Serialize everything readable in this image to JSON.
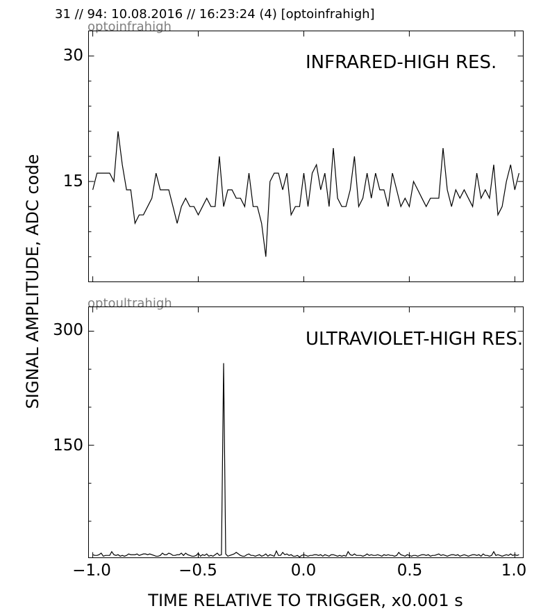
{
  "header": {
    "text": "31 // 94:   10.08.2016 // 16:23:24 (4)  [optoinfrahigh]"
  },
  "ylabel": "SIGNAL AMPLITUDE,  ADC code",
  "xlabel": "TIME RELATIVE TO TRIGGER,   x0.001 s",
  "colors": {
    "line": "#000000",
    "subtitle": "#808080",
    "axes": "#000000"
  },
  "chart_data": [
    {
      "type": "line",
      "subtitle": "optoinfrahigh",
      "panel_label": "INFRARED-HIGH RES.",
      "xlim": [
        -1.02,
        1.04
      ],
      "ylim": [
        3.0,
        33.0
      ],
      "yticks": [
        30,
        15
      ],
      "ytick_labels": [
        "30",
        "15"
      ],
      "x_start": -1.0,
      "x_step": 0.02,
      "values": [
        14,
        16,
        16,
        16,
        16,
        15,
        21,
        17,
        14,
        14,
        10,
        11,
        11,
        12,
        13,
        16,
        14,
        14,
        14,
        12,
        10,
        12,
        13,
        12,
        12,
        11,
        12,
        13,
        12,
        12,
        18,
        12,
        14,
        14,
        13,
        13,
        12,
        16,
        12,
        12,
        10,
        6,
        15,
        16,
        16,
        14,
        16,
        11,
        12,
        12,
        16,
        12,
        16,
        17,
        14,
        16,
        12,
        19,
        13,
        12,
        12,
        14,
        18,
        12,
        13,
        16,
        13,
        16,
        14,
        14,
        12,
        16,
        14,
        12,
        13,
        12,
        15,
        14,
        13,
        12,
        13,
        13,
        13,
        19,
        14,
        12,
        14,
        13,
        14,
        13,
        12,
        16,
        13,
        14,
        13,
        17,
        11,
        12,
        15,
        17,
        14,
        16
      ]
    },
    {
      "type": "line",
      "subtitle": "optoultrahigh",
      "panel_label": "ULTRAVIOLET-HIGH RES.",
      "xlim": [
        -1.02,
        1.04
      ],
      "ylim": [
        2.0,
        332.0
      ],
      "yticks": [
        300,
        150
      ],
      "ytick_labels": [
        "300",
        "150"
      ],
      "xticks": [
        -1.0,
        -0.5,
        0.0,
        0.5,
        1.0
      ],
      "xtick_labels": [
        "−1.0",
        "−0.5",
        "0.0",
        "0.5",
        "1.0"
      ],
      "x_start": -1.0,
      "x_step": 0.01,
      "values": [
        6,
        5,
        5,
        6,
        8,
        4,
        5,
        5,
        5,
        10,
        6,
        5,
        6,
        4,
        5,
        4,
        5,
        7,
        6,
        6,
        6,
        7,
        5,
        6,
        7,
        7,
        6,
        7,
        6,
        5,
        4,
        4,
        5,
        8,
        6,
        6,
        8,
        7,
        5,
        5,
        6,
        6,
        8,
        5,
        8,
        6,
        5,
        4,
        4,
        5,
        8,
        4,
        6,
        5,
        7,
        4,
        5,
        4,
        6,
        8,
        5,
        6,
        258,
        7,
        4,
        5,
        6,
        7,
        9,
        7,
        5,
        4,
        4,
        6,
        7,
        5,
        5,
        4,
        5,
        6,
        4,
        5,
        7,
        4,
        6,
        5,
        4,
        11,
        5,
        5,
        9,
        6,
        7,
        5,
        6,
        4,
        4,
        5,
        3,
        5,
        6,
        5,
        4,
        5,
        5,
        6,
        6,
        5,
        6,
        4,
        6,
        5,
        4,
        6,
        6,
        5,
        4,
        5,
        4,
        5,
        4,
        10,
        6,
        5,
        7,
        5,
        5,
        5,
        4,
        5,
        7,
        5,
        6,
        5,
        5,
        6,
        5,
        4,
        6,
        5,
        6,
        5,
        5,
        4,
        5,
        9,
        6,
        5,
        4,
        6,
        5,
        4,
        5,
        5,
        4,
        5,
        6,
        6,
        5,
        6,
        4,
        5,
        5,
        6,
        7,
        5,
        6,
        5,
        4,
        5,
        6,
        6,
        5,
        6,
        4,
        5,
        6,
        5,
        4,
        5,
        6,
        6,
        5,
        6,
        4,
        7,
        5,
        5,
        4,
        5,
        10,
        5,
        6,
        5,
        4,
        5,
        6,
        5,
        7,
        5,
        6,
        5,
        6
      ]
    }
  ]
}
